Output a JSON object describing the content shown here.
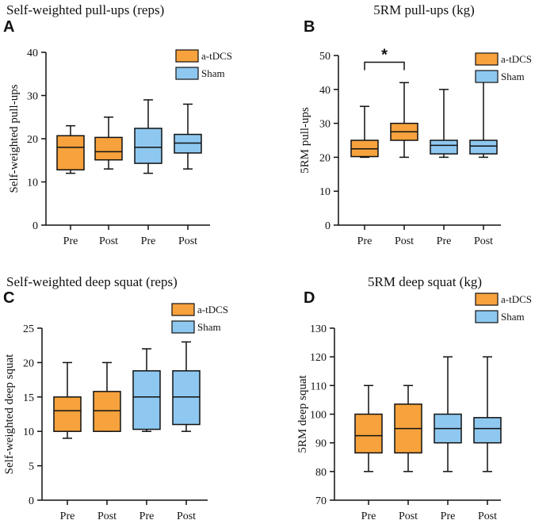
{
  "colors": {
    "atdcs": "#F7A23D",
    "sham": "#8EC8F0",
    "stroke": "#111111"
  },
  "chart_data": [
    {
      "letter": "A",
      "type": "box",
      "title": "Self-weighted pull-ups (reps)",
      "ylabel": "Self-weighted pull-ups",
      "ylim": [
        0,
        40
      ],
      "yticks": [
        0,
        10,
        20,
        30,
        40
      ],
      "categories": [
        "Pre",
        "Post",
        "Pre",
        "Post"
      ],
      "legend": [
        {
          "label": "a-tDCS",
          "color": "#F7A23D"
        },
        {
          "label": "Sham",
          "color": "#8EC8F0"
        }
      ],
      "boxes": [
        {
          "group": "a-tDCS",
          "min": 12,
          "q1": 12.8,
          "median": 18,
          "q3": 20.7,
          "max": 23
        },
        {
          "group": "a-tDCS",
          "min": 13,
          "q1": 15.1,
          "median": 17,
          "q3": 20.3,
          "max": 25
        },
        {
          "group": "Sham",
          "min": 12,
          "q1": 14.3,
          "median": 18,
          "q3": 22.4,
          "max": 29
        },
        {
          "group": "Sham",
          "min": 13,
          "q1": 16.7,
          "median": 19,
          "q3": 21,
          "max": 28
        }
      ],
      "significance": null
    },
    {
      "letter": "B",
      "type": "box",
      "title": "5RM pull-ups (kg)",
      "ylabel": "5RM pull-ups",
      "ylim": [
        0,
        50
      ],
      "yticks": [
        0,
        10,
        20,
        30,
        40,
        50
      ],
      "categories": [
        "Pre",
        "Post",
        "Pre",
        "Post"
      ],
      "legend": [
        {
          "label": "a-tDCS",
          "color": "#F7A23D"
        },
        {
          "label": "Sham",
          "color": "#8EC8F0"
        }
      ],
      "boxes": [
        {
          "group": "a-tDCS",
          "min": 20,
          "q1": 20.2,
          "median": 22.5,
          "q3": 25,
          "max": 35
        },
        {
          "group": "a-tDCS",
          "min": 20,
          "q1": 25,
          "median": 27.5,
          "q3": 30,
          "max": 42
        },
        {
          "group": "Sham",
          "min": 20,
          "q1": 21,
          "median": 23.5,
          "q3": 25,
          "max": 40
        },
        {
          "group": "Sham",
          "min": 20,
          "q1": 21,
          "median": 23.3,
          "q3": 25,
          "max": 42.5
        }
      ],
      "significance": {
        "from": 0,
        "to": 1,
        "y": 48,
        "label": "*"
      }
    },
    {
      "letter": "C",
      "type": "box",
      "title": "Self-weighted deep squat (reps)",
      "ylabel": "Self-weighted deep squat",
      "ylim": [
        0,
        25
      ],
      "yticks": [
        0,
        5,
        10,
        15,
        20,
        25
      ],
      "categories": [
        "Pre",
        "Post",
        "Pre",
        "Post"
      ],
      "legend": [
        {
          "label": "a-tDCS",
          "color": "#F7A23D"
        },
        {
          "label": "Sham",
          "color": "#8EC8F0"
        }
      ],
      "boxes": [
        {
          "group": "a-tDCS",
          "min": 9,
          "q1": 10,
          "median": 13,
          "q3": 15,
          "max": 20
        },
        {
          "group": "a-tDCS",
          "min": 10,
          "q1": 10,
          "median": 13,
          "q3": 15.8,
          "max": 20
        },
        {
          "group": "Sham",
          "min": 10,
          "q1": 10.3,
          "median": 15,
          "q3": 18.8,
          "max": 22
        },
        {
          "group": "Sham",
          "min": 10,
          "q1": 11,
          "median": 15,
          "q3": 18.8,
          "max": 23
        }
      ],
      "significance": null
    },
    {
      "letter": "D",
      "type": "box",
      "title": "5RM deep squat (kg)",
      "ylabel": "5RM deep squat",
      "ylim": [
        70,
        130
      ],
      "yticks": [
        70,
        80,
        90,
        100,
        110,
        120,
        130
      ],
      "categories": [
        "Pre",
        "Post",
        "Pre",
        "Post"
      ],
      "legend": [
        {
          "label": "a-tDCS",
          "color": "#F7A23D"
        },
        {
          "label": "Sham",
          "color": "#8EC8F0"
        }
      ],
      "boxes": [
        {
          "group": "a-tDCS",
          "min": 80,
          "q1": 86.5,
          "median": 92.5,
          "q3": 100,
          "max": 110
        },
        {
          "group": "a-tDCS",
          "min": 80,
          "q1": 86.5,
          "median": 95,
          "q3": 103.5,
          "max": 110
        },
        {
          "group": "Sham",
          "min": 80,
          "q1": 90,
          "median": 95,
          "q3": 100,
          "max": 120
        },
        {
          "group": "Sham",
          "min": 80,
          "q1": 90,
          "median": 95,
          "q3": 98.8,
          "max": 120
        }
      ],
      "significance": null
    }
  ]
}
